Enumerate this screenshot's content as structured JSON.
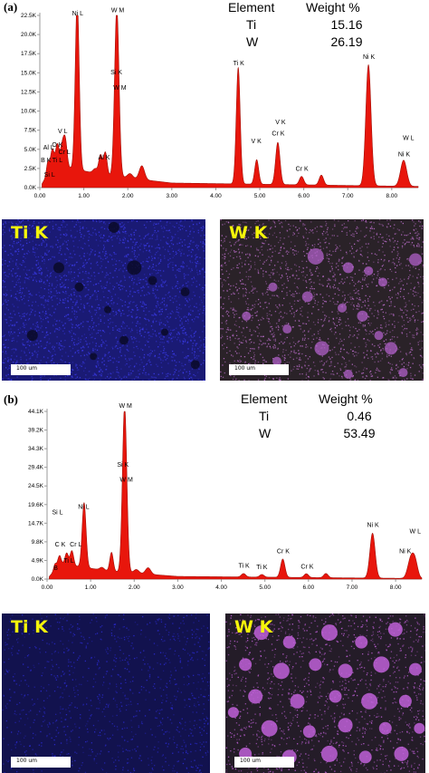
{
  "colors": {
    "fill": "#e8160c",
    "stroke": "#a01008",
    "axis": "#9a9a9a",
    "ti_map": "#2a2ad8",
    "w_map": "#c060d8",
    "label": "#f5f50a"
  },
  "chart_data": [
    {
      "panel": "(a)",
      "type": "area",
      "xlim": [
        0,
        8.6
      ],
      "ylim": [
        0,
        22500
      ],
      "yticks": [
        "0.0K",
        "2.5K",
        "5.0K",
        "7.5K",
        "10.0K",
        "12.5K",
        "15.0K",
        "17.5K",
        "20.0K",
        "22.5K"
      ],
      "xticks": [
        "0.00",
        "1.00",
        "2.00",
        "3.00",
        "4.00",
        "5.00",
        "6.00",
        "7.00",
        "8.00"
      ],
      "peaks": [
        {
          "x": 0.18,
          "y": 1500,
          "w": 0.03
        },
        {
          "x": 0.28,
          "y": 2200,
          "w": 0.04
        },
        {
          "x": 0.4,
          "y": 2800,
          "w": 0.04
        },
        {
          "x": 0.51,
          "y": 2600,
          "w": 0.04
        },
        {
          "x": 0.58,
          "y": 3400,
          "w": 0.04
        },
        {
          "x": 0.85,
          "y": 22200,
          "w": 0.045
        },
        {
          "x": 1.26,
          "y": 600,
          "w": 0.05
        },
        {
          "x": 1.38,
          "y": 2500,
          "w": 0.04
        },
        {
          "x": 1.49,
          "y": 3000,
          "w": 0.04
        },
        {
          "x": 1.75,
          "y": 22100,
          "w": 0.05
        },
        {
          "x": 2.05,
          "y": 600,
          "w": 0.06
        },
        {
          "x": 2.32,
          "y": 1800,
          "w": 0.06
        },
        {
          "x": 4.51,
          "y": 15200,
          "w": 0.045
        },
        {
          "x": 4.93,
          "y": 3200,
          "w": 0.045
        },
        {
          "x": 5.41,
          "y": 5500,
          "w": 0.05
        },
        {
          "x": 5.95,
          "y": 1100,
          "w": 0.05
        },
        {
          "x": 6.4,
          "y": 1300,
          "w": 0.05
        },
        {
          "x": 7.47,
          "y": 15800,
          "w": 0.06
        },
        {
          "x": 8.27,
          "y": 3400,
          "w": 0.07
        }
      ],
      "background": [
        [
          0,
          0
        ],
        [
          0.3,
          3000
        ],
        [
          1.5,
          1600
        ],
        [
          3,
          600
        ],
        [
          8.6,
          150
        ]
      ],
      "labels": [
        {
          "text": "Ni L",
          "x": 0.86,
          "y": 22500
        },
        {
          "text": "W M",
          "x": 1.77,
          "y": 22900
        },
        {
          "text": "Si K",
          "x": 1.74,
          "y": 14800
        },
        {
          "text": "W M",
          "x": 1.82,
          "y": 12800
        },
        {
          "text": "Ti K",
          "x": 4.52,
          "y": 16000
        },
        {
          "text": "Ni K",
          "x": 7.48,
          "y": 16800
        },
        {
          "text": "V K",
          "x": 5.47,
          "y": 8300
        },
        {
          "text": "Cr K",
          "x": 5.42,
          "y": 6800
        },
        {
          "text": "V K",
          "x": 4.92,
          "y": 5800
        },
        {
          "text": "W L",
          "x": 8.38,
          "y": 6200
        },
        {
          "text": "Ni K",
          "x": 8.28,
          "y": 4100
        },
        {
          "text": "Cr K",
          "x": 5.96,
          "y": 2200
        },
        {
          "text": "Al K",
          "x": 1.46,
          "y": 3700
        },
        {
          "text": "V L",
          "x": 0.52,
          "y": 7100
        },
        {
          "text": "O K",
          "x": 0.4,
          "y": 5300
        },
        {
          "text": "Al L",
          "x": 0.2,
          "y": 5000
        },
        {
          "text": "Cr L",
          "x": 0.56,
          "y": 4400
        },
        {
          "text": "Ti L",
          "x": 0.4,
          "y": 3300
        },
        {
          "text": "B K",
          "x": 0.14,
          "y": 3300
        },
        {
          "text": "Si L",
          "x": 0.22,
          "y": 1400
        }
      ],
      "table": {
        "header": [
          "Element",
          "Weight %"
        ],
        "rows": [
          [
            "Ti",
            "15.16"
          ],
          [
            "W",
            "26.19"
          ]
        ]
      }
    },
    {
      "panel": "(b)",
      "type": "area",
      "xlim": [
        0,
        8.6
      ],
      "ylim": [
        0,
        44100
      ],
      "yticks": [
        "0.0K",
        "4.9K",
        "9.8K",
        "14.7K",
        "19.6K",
        "24.5K",
        "29.4K",
        "34.3K",
        "39.2K",
        "44.1K"
      ],
      "xticks": [
        "0.00",
        "1.00",
        "2.00",
        "3.00",
        "4.00",
        "5.00",
        "6.00",
        "7.00",
        "8.00"
      ],
      "peaks": [
        {
          "x": 0.18,
          "y": 1500,
          "w": 0.03
        },
        {
          "x": 0.28,
          "y": 2400,
          "w": 0.04
        },
        {
          "x": 0.45,
          "y": 3100,
          "w": 0.04
        },
        {
          "x": 0.57,
          "y": 3900,
          "w": 0.04
        },
        {
          "x": 0.85,
          "y": 17000,
          "w": 0.045
        },
        {
          "x": 1.26,
          "y": 700,
          "w": 0.05
        },
        {
          "x": 1.48,
          "y": 5000,
          "w": 0.04
        },
        {
          "x": 1.78,
          "y": 43800,
          "w": 0.05
        },
        {
          "x": 2.05,
          "y": 1000,
          "w": 0.06
        },
        {
          "x": 2.32,
          "y": 1700,
          "w": 0.06
        },
        {
          "x": 4.51,
          "y": 900,
          "w": 0.05
        },
        {
          "x": 4.93,
          "y": 700,
          "w": 0.05
        },
        {
          "x": 5.41,
          "y": 4800,
          "w": 0.05
        },
        {
          "x": 5.95,
          "y": 1000,
          "w": 0.05
        },
        {
          "x": 6.4,
          "y": 1100,
          "w": 0.05
        },
        {
          "x": 7.47,
          "y": 11800,
          "w": 0.06
        },
        {
          "x": 8.35,
          "y": 5200,
          "w": 0.07
        },
        {
          "x": 8.45,
          "y": 3800,
          "w": 0.06
        }
      ],
      "background": [
        [
          0,
          0
        ],
        [
          0.3,
          4000
        ],
        [
          1.5,
          2000
        ],
        [
          3,
          700
        ],
        [
          8.6,
          150
        ]
      ],
      "labels": [
        {
          "text": "W M",
          "x": 1.8,
          "y": 45000
        },
        {
          "text": "Si K",
          "x": 1.74,
          "y": 29500
        },
        {
          "text": "W M",
          "x": 1.82,
          "y": 25600
        },
        {
          "text": "Si L",
          "x": 0.24,
          "y": 17000
        },
        {
          "text": "Ni L",
          "x": 0.84,
          "y": 18500
        },
        {
          "text": "C K",
          "x": 0.3,
          "y": 8600
        },
        {
          "text": "Cr L",
          "x": 0.66,
          "y": 8600
        },
        {
          "text": "Ti L",
          "x": 0.5,
          "y": 4300
        },
        {
          "text": "B",
          "x": 0.2,
          "y": 2400
        },
        {
          "text": "Ti K",
          "x": 4.52,
          "y": 3000
        },
        {
          "text": "Ti K",
          "x": 4.93,
          "y": 2600
        },
        {
          "text": "Cr K",
          "x": 5.42,
          "y": 6800
        },
        {
          "text": "Cr K",
          "x": 5.97,
          "y": 2800
        },
        {
          "text": "Ni K",
          "x": 7.48,
          "y": 13700
        },
        {
          "text": "W L",
          "x": 8.45,
          "y": 12000
        },
        {
          "text": "Ni K",
          "x": 8.22,
          "y": 6800
        }
      ],
      "table": {
        "header": [
          "Element",
          "Weight %"
        ],
        "rows": [
          [
            "Ti",
            "0.46"
          ],
          [
            "W",
            "53.49"
          ]
        ]
      }
    }
  ],
  "maps": [
    {
      "title": "Ti K",
      "scale": "100 um"
    },
    {
      "title": "W K",
      "scale": "100 um"
    },
    {
      "title": "Ti K",
      "scale": "100 um"
    },
    {
      "title": "W K",
      "scale": "100 um"
    }
  ]
}
